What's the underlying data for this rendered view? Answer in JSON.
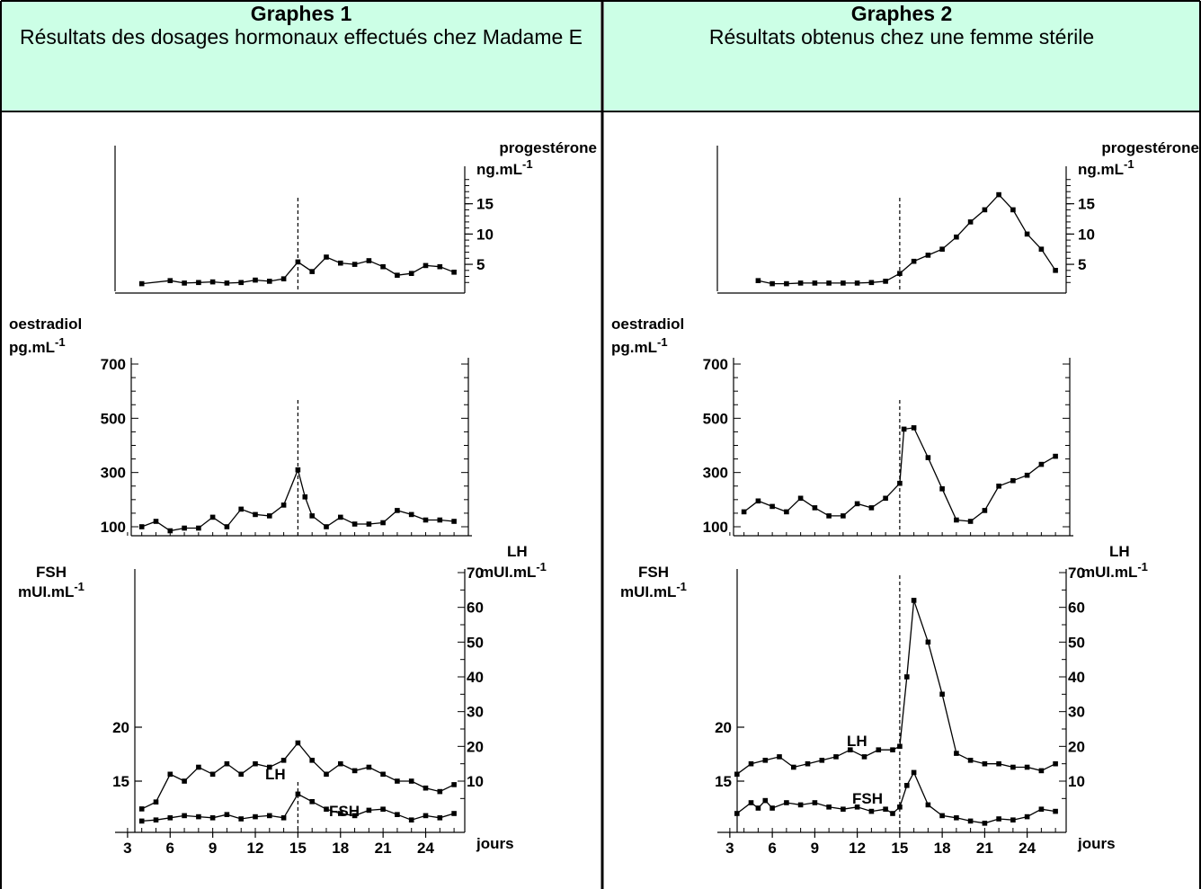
{
  "panels": [
    {
      "title": "Graphes 1",
      "subtitle": "Résultats des dosages hormonaux effectués chez Madame E"
    },
    {
      "title": "Graphes 2",
      "subtitle": "Résultats obtenus chez une femme stérile"
    }
  ],
  "axis_labels": {
    "progesterone_name": "progestérone",
    "progesterone_unit": "ng.mL",
    "oestradiol_name": "oestradiol",
    "oestradiol_unit": "pg.mL",
    "fsh_name": "FSH",
    "fsh_unit": "mUI.mL",
    "lh_name": "LH",
    "lh_unit": "mUI.mL",
    "exponent": "-1",
    "x_unit": "jours"
  },
  "colors": {
    "header_bg": "#ccffe6",
    "ink": "#000000"
  },
  "chart_data": [
    {
      "type": "line",
      "title": "Graphes 1",
      "x_ticks": [
        3,
        6,
        9,
        12,
        15,
        18,
        21,
        24
      ],
      "x_tick_labels": [
        "3",
        "6",
        "9",
        "12",
        "15",
        "18",
        "21",
        "24"
      ],
      "x_range": [
        2.5,
        26.5
      ],
      "ovulation_day": 15,
      "progesterone": {
        "ylabel": "progestérone ng.mL-1",
        "ylim": [
          1,
          20
        ],
        "yticks": [
          5,
          10,
          15
        ],
        "x": [
          4,
          6,
          7,
          8,
          9,
          10,
          11,
          12,
          13,
          14,
          15,
          16,
          17,
          18,
          19,
          20,
          21,
          22,
          23,
          24,
          25,
          26
        ],
        "values": [
          1.8,
          2.3,
          1.9,
          2.0,
          2.1,
          1.9,
          2.0,
          2.4,
          2.2,
          2.6,
          5.4,
          3.8,
          6.2,
          5.2,
          5.0,
          5.6,
          4.6,
          3.2,
          3.5,
          4.8,
          4.6,
          3.7
        ]
      },
      "oestradiol": {
        "ylabel": "oestradiol pg.mL-1",
        "ylim": [
          50,
          750
        ],
        "yticks": [
          100,
          300,
          500,
          700
        ],
        "x": [
          4,
          5,
          6,
          7,
          8,
          9,
          10,
          11,
          12,
          13,
          14,
          15,
          15.5,
          16,
          17,
          18,
          19,
          20,
          21,
          22,
          23,
          24,
          25,
          26
        ],
        "values": [
          100,
          120,
          85,
          95,
          95,
          135,
          100,
          165,
          145,
          140,
          180,
          310,
          210,
          140,
          100,
          135,
          110,
          110,
          115,
          160,
          145,
          125,
          125,
          120
        ]
      },
      "gonadotropins": {
        "fsh_label": "FSH",
        "lh_label": "LH",
        "fsh_ylabel": "FSH mUI.mL-1",
        "lh_ylabel": "LH mUI.mL-1",
        "fsh_yticks": [
          15,
          20
        ],
        "lh_yticks": [
          10,
          20,
          30,
          40,
          50,
          60,
          70
        ],
        "lh_x": [
          4,
          5,
          6,
          7,
          8,
          9,
          10,
          11,
          12,
          13,
          14,
          15,
          16,
          17,
          18,
          19,
          20,
          21,
          22,
          23,
          24,
          25,
          26
        ],
        "lh_values": [
          2,
          4,
          12,
          10,
          14,
          12,
          15,
          12,
          15,
          14,
          16,
          21,
          16,
          12,
          15,
          13,
          14,
          12,
          10,
          10,
          8,
          7,
          9
        ],
        "fsh_x": [
          4,
          5,
          6,
          7,
          8,
          9,
          10,
          11,
          12,
          13,
          14,
          15,
          16,
          17,
          18,
          19,
          20,
          21,
          22,
          23,
          24,
          25,
          26
        ],
        "fsh_values": [
          11.3,
          11.4,
          11.6,
          11.8,
          11.7,
          11.6,
          11.9,
          11.5,
          11.7,
          11.8,
          11.6,
          13.8,
          13.1,
          12.4,
          12.0,
          11.8,
          12.3,
          12.4,
          11.9,
          11.4,
          11.8,
          11.6,
          12.0
        ]
      }
    },
    {
      "type": "line",
      "title": "Graphes 2",
      "x_ticks": [
        3,
        6,
        9,
        12,
        15,
        18,
        21,
        24
      ],
      "x_tick_labels": [
        "3",
        "6",
        "9",
        "12",
        "15",
        "18",
        "21",
        "24"
      ],
      "x_range": [
        2.5,
        26.5
      ],
      "ovulation_day": 15,
      "progesterone": {
        "ylabel": "progestérone ng.mL-1",
        "ylim": [
          1,
          20
        ],
        "yticks": [
          5,
          10,
          15
        ],
        "x": [
          5,
          6,
          7,
          8,
          9,
          10,
          11,
          12,
          13,
          14,
          15,
          16,
          17,
          18,
          19,
          20,
          21,
          22,
          23,
          24,
          25,
          26
        ],
        "values": [
          2.3,
          1.8,
          1.8,
          1.9,
          1.9,
          1.9,
          1.9,
          1.9,
          2.0,
          2.2,
          3.5,
          5.5,
          6.5,
          7.5,
          9.5,
          12,
          14,
          16.5,
          14,
          10,
          7.5,
          4
        ]
      },
      "oestradiol": {
        "ylabel": "oestradiol pg.mL-1",
        "ylim": [
          50,
          750
        ],
        "yticks": [
          100,
          300,
          500,
          700
        ],
        "x": [
          4,
          5,
          6,
          7,
          8,
          9,
          10,
          11,
          12,
          13,
          14,
          15,
          15.3,
          16,
          17,
          18,
          19,
          20,
          21,
          22,
          23,
          24,
          25,
          26
        ],
        "values": [
          155,
          195,
          175,
          155,
          205,
          170,
          140,
          140,
          185,
          170,
          205,
          260,
          460,
          465,
          355,
          240,
          125,
          120,
          160,
          250,
          270,
          290,
          330,
          360
        ]
      },
      "gonadotropins": {
        "fsh_label": "FSH",
        "lh_label": "LH",
        "fsh_ylabel": "FSH mUI.mL-1",
        "lh_ylabel": "LH mUI.mL-1",
        "fsh_yticks": [
          15,
          20
        ],
        "lh_yticks": [
          10,
          20,
          30,
          40,
          50,
          60,
          70
        ],
        "lh_x": [
          3.5,
          4.5,
          5.5,
          6.5,
          7.5,
          8.5,
          9.5,
          10.5,
          11.5,
          12.5,
          13.5,
          14.5,
          15,
          15.5,
          16,
          17,
          18,
          19,
          20,
          21,
          22,
          23,
          24,
          25,
          26
        ],
        "lh_values": [
          12,
          15,
          16,
          17,
          14,
          15,
          16,
          17,
          19,
          17,
          19,
          19,
          20,
          40,
          62,
          50,
          35,
          18,
          16,
          15,
          15,
          14,
          14,
          13,
          15
        ],
        "fsh_x": [
          3.5,
          4.5,
          5,
          5.5,
          6,
          7,
          8,
          9,
          10,
          11,
          12,
          13,
          14,
          14.5,
          15,
          15.5,
          16,
          17,
          18,
          19,
          20,
          21,
          22,
          23,
          24,
          25,
          26
        ],
        "fsh_values": [
          12.0,
          13.0,
          12.5,
          13.2,
          12.5,
          13.0,
          12.8,
          13.0,
          12.6,
          12.4,
          12.6,
          12.2,
          12.4,
          12.0,
          12.6,
          14.6,
          15.8,
          12.8,
          11.8,
          11.6,
          11.3,
          11.1,
          11.5,
          11.4,
          11.7,
          12.4,
          12.2
        ]
      }
    }
  ]
}
